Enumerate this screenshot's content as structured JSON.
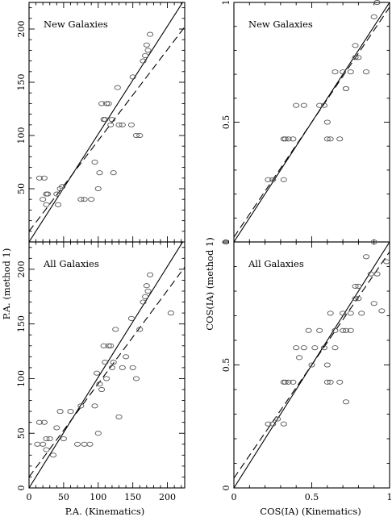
{
  "figure": {
    "left_ylabel": "P.A. (method 1)",
    "left_xlabel": "P.A. (Kinematics)",
    "right_ylabel": "COS(IA) (method 1)",
    "right_xlabel": "COS(IA) (Kinematics)"
  },
  "chart_data": [
    {
      "type": "scatter",
      "title": "New Galaxies",
      "xlim": [
        0,
        225
      ],
      "ylim": [
        0,
        225
      ],
      "xticks": [],
      "yticks": [
        "50",
        "100",
        "150",
        "200"
      ],
      "series": [
        {
          "x": [
            15,
            20,
            22,
            25,
            25,
            27,
            40,
            42,
            45,
            48,
            75,
            80,
            90,
            95,
            100,
            102,
            105,
            108,
            110,
            112,
            115,
            118,
            120,
            122,
            128,
            130,
            135,
            148,
            150,
            155,
            160,
            165,
            168,
            170,
            172,
            175
          ],
          "y": [
            60,
            40,
            60,
            35,
            45,
            45,
            45,
            35,
            50,
            52,
            40,
            40,
            40,
            75,
            50,
            65,
            130,
            115,
            115,
            130,
            130,
            110,
            115,
            65,
            145,
            110,
            110,
            110,
            155,
            100,
            100,
            170,
            175,
            185,
            180,
            195
          ]
        }
      ],
      "lines": [
        {
          "style": "solid",
          "x": [
            0,
            225
          ],
          "y": [
            0,
            228
          ]
        },
        {
          "style": "dashed",
          "x": [
            0,
            225
          ],
          "y": [
            10,
            202
          ]
        }
      ]
    },
    {
      "type": "scatter",
      "title": "All Galaxies",
      "xlim": [
        0,
        225
      ],
      "ylim": [
        0,
        225
      ],
      "xticks": [
        "0",
        "50",
        "100",
        "150",
        "200"
      ],
      "yticks": [
        "0",
        "50",
        "100",
        "150",
        "200"
      ],
      "series": [
        {
          "x": [
            12,
            15,
            20,
            22,
            25,
            25,
            30,
            35,
            40,
            45,
            50,
            60,
            70,
            75,
            80,
            88,
            95,
            98,
            100,
            102,
            105,
            108,
            110,
            112,
            115,
            118,
            120,
            122,
            125,
            130,
            135,
            140,
            148,
            150,
            155,
            160,
            165,
            168,
            170,
            172,
            175,
            205
          ],
          "y": [
            40,
            60,
            40,
            60,
            35,
            45,
            45,
            30,
            55,
            70,
            45,
            70,
            40,
            75,
            40,
            40,
            75,
            105,
            50,
            95,
            90,
            130,
            115,
            100,
            130,
            130,
            110,
            115,
            145,
            65,
            110,
            120,
            155,
            110,
            100,
            145,
            170,
            175,
            185,
            180,
            195,
            160
          ]
        }
      ],
      "lines": [
        {
          "style": "solid",
          "x": [
            0,
            225
          ],
          "y": [
            0,
            228
          ]
        },
        {
          "style": "dashed",
          "x": [
            0,
            225
          ],
          "y": [
            10,
            202
          ]
        }
      ]
    },
    {
      "type": "scatter",
      "title": "New Galaxies",
      "xlim": [
        0,
        1
      ],
      "ylim": [
        0,
        1
      ],
      "xticks": [],
      "yticks": [
        "0",
        "0.5",
        "1"
      ],
      "series": [
        {
          "x": [
            0.22,
            0.25,
            0.32,
            0.32,
            0.33,
            0.35,
            0.38,
            0.4,
            0.45,
            0.55,
            0.58,
            0.6,
            0.6,
            0.62,
            0.65,
            0.68,
            0.7,
            0.72,
            0.72,
            0.75,
            0.78,
            0.78,
            0.8,
            0.85,
            0.9,
            0.92
          ],
          "y": [
            0.26,
            0.26,
            0.26,
            0.43,
            0.43,
            0.43,
            0.43,
            0.57,
            0.57,
            0.57,
            0.57,
            0.43,
            0.5,
            0.43,
            0.71,
            0.43,
            0.71,
            0.64,
            0.64,
            0.71,
            0.77,
            0.82,
            0.77,
            0.71,
            0.94,
            1.0
          ]
        }
      ],
      "lines": [
        {
          "style": "solid",
          "x": [
            0,
            1
          ],
          "y": [
            0,
            1
          ]
        },
        {
          "style": "dashed",
          "x": [
            0,
            1
          ],
          "y": [
            0.02,
            0.98
          ]
        }
      ]
    },
    {
      "type": "scatter",
      "title": "All Galaxies",
      "xlim": [
        0,
        1
      ],
      "ylim": [
        0,
        1
      ],
      "xticks": [
        "0",
        "0.5",
        "1"
      ],
      "yticks": [
        "0",
        "0.5",
        "1"
      ],
      "series": [
        {
          "x": [
            0.22,
            0.25,
            0.28,
            0.32,
            0.32,
            0.33,
            0.35,
            0.38,
            0.4,
            0.42,
            0.45,
            0.48,
            0.5,
            0.52,
            0.55,
            0.58,
            0.6,
            0.6,
            0.62,
            0.62,
            0.65,
            0.65,
            0.68,
            0.7,
            0.7,
            0.72,
            0.72,
            0.75,
            0.75,
            0.78,
            0.78,
            0.8,
            0.8,
            0.82,
            0.85,
            0.88,
            0.9,
            0.9,
            0.92,
            0.95,
            0.98
          ],
          "y": [
            0.26,
            0.26,
            0.28,
            0.26,
            0.43,
            0.43,
            0.43,
            0.43,
            0.57,
            0.53,
            0.57,
            0.64,
            0.5,
            0.57,
            0.64,
            0.57,
            0.43,
            0.5,
            0.43,
            0.71,
            0.57,
            0.64,
            0.43,
            0.64,
            0.71,
            0.35,
            0.64,
            0.71,
            0.64,
            0.77,
            0.82,
            0.77,
            0.82,
            0.71,
            0.94,
            0.87,
            0.75,
            1.0,
            0.87,
            0.72,
            0.92
          ]
        }
      ],
      "lines": [
        {
          "style": "solid",
          "x": [
            0,
            1
          ],
          "y": [
            0,
            1
          ]
        },
        {
          "style": "dashed",
          "x": [
            0,
            1
          ],
          "y": [
            0.04,
            0.96
          ]
        }
      ]
    }
  ]
}
